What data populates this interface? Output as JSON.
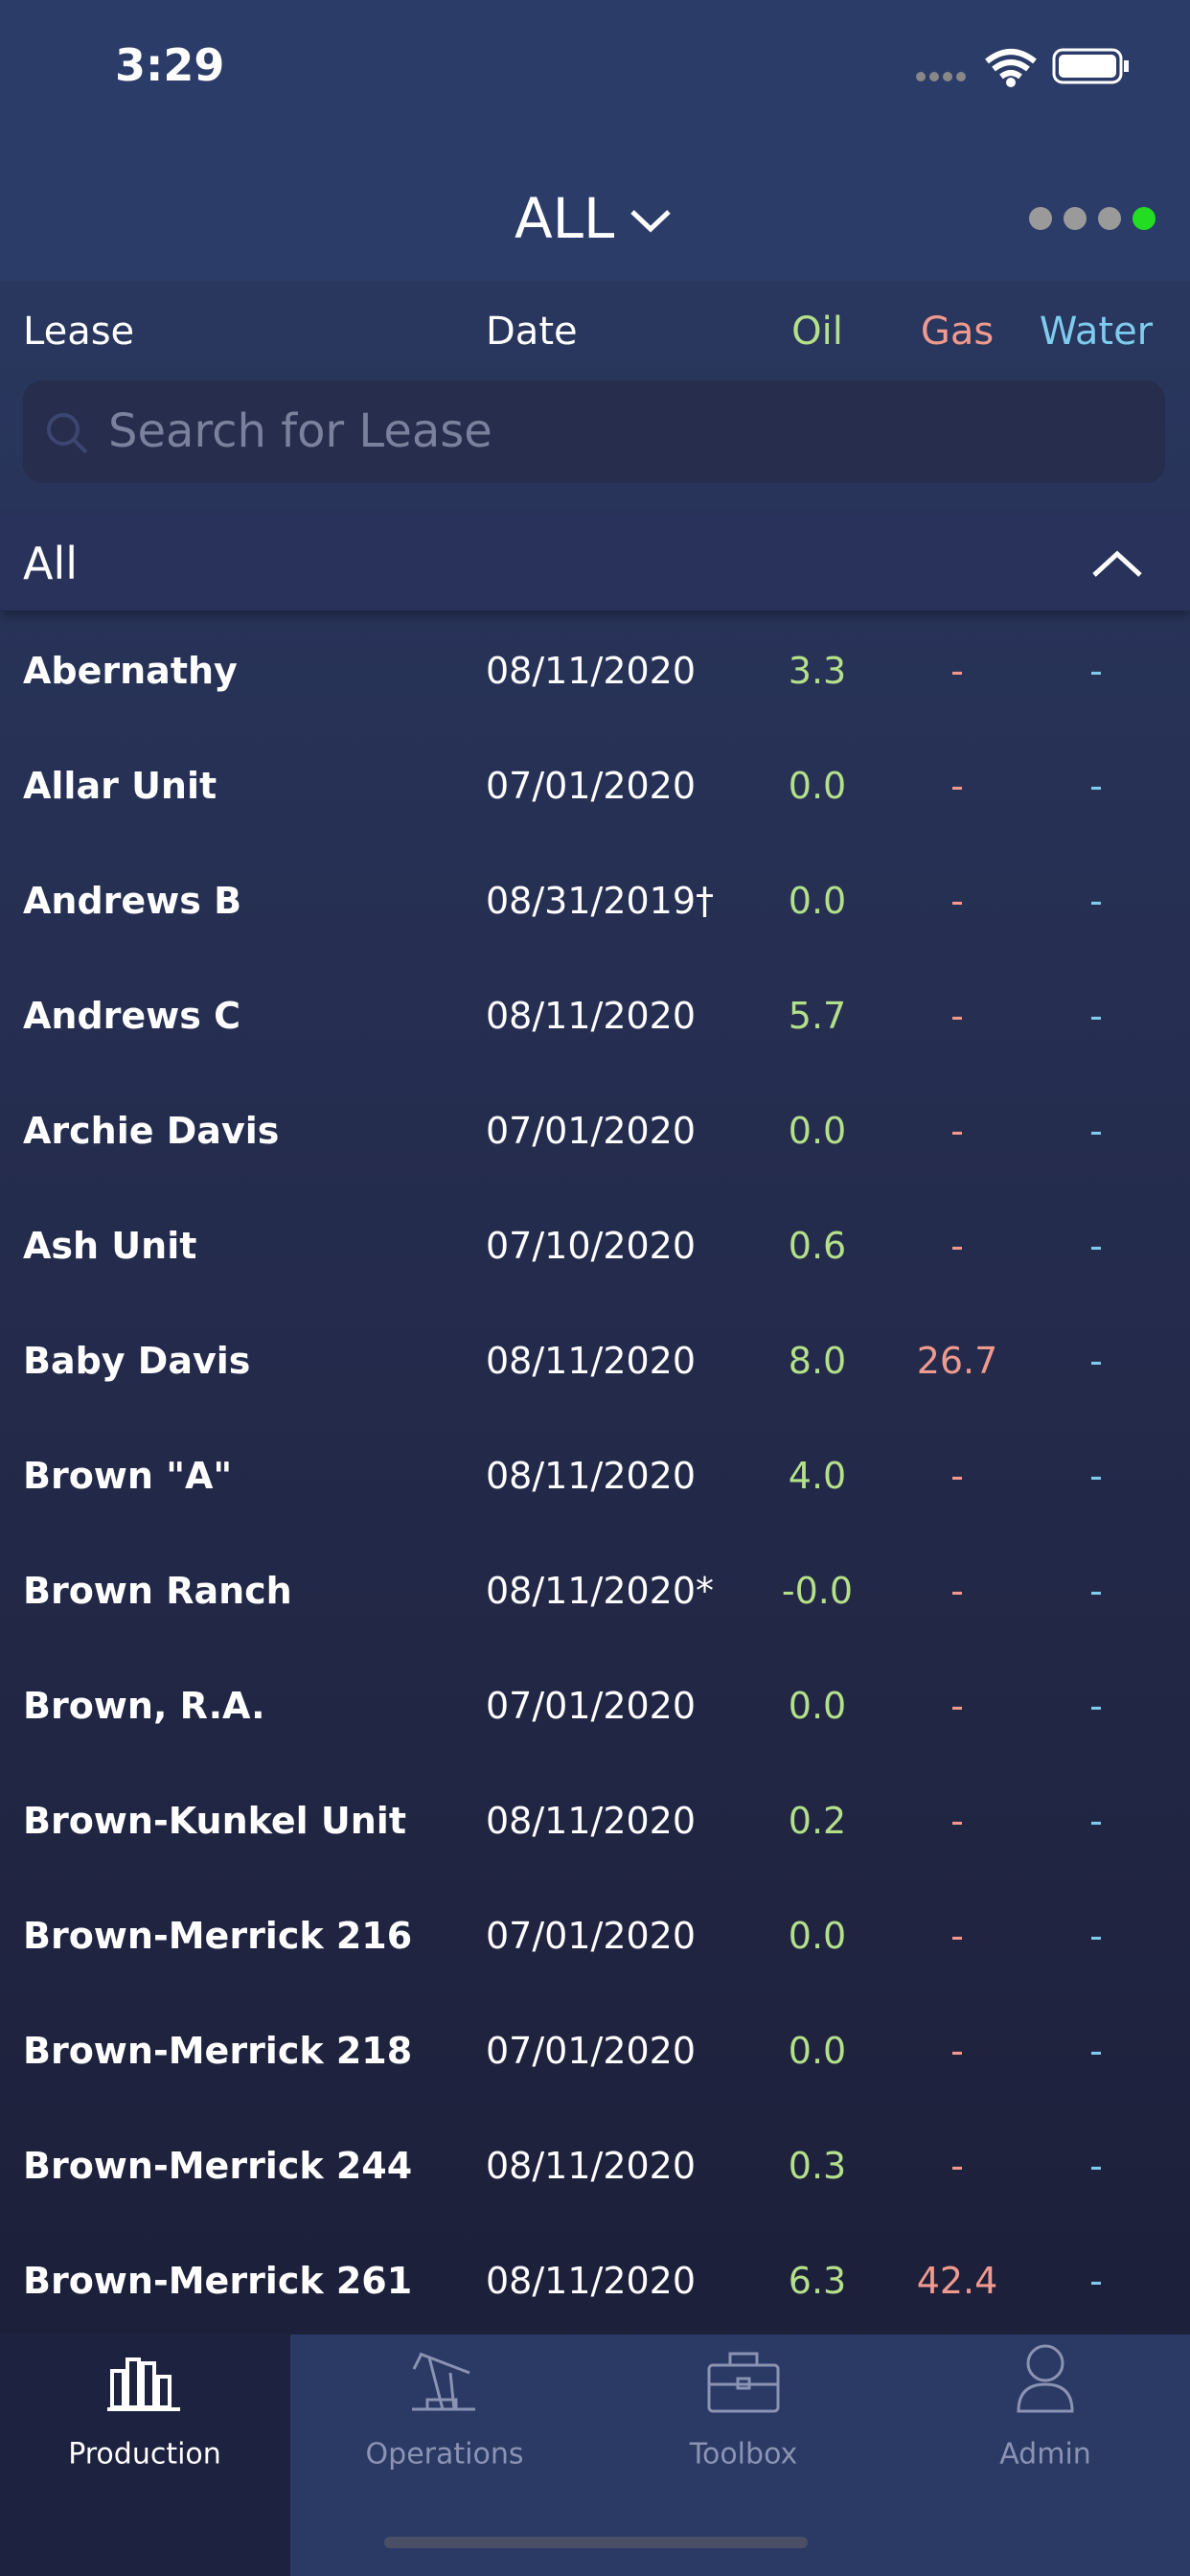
{
  "status_bar": {
    "time": "3:29"
  },
  "header": {
    "title": "ALL"
  },
  "columns": {
    "lease": "Lease",
    "date": "Date",
    "oil": "Oil",
    "gas": "Gas",
    "water": "Water"
  },
  "search": {
    "placeholder": "Search for Lease"
  },
  "section": {
    "title": "All"
  },
  "table": {
    "rows": [
      [
        "Abernathy",
        "08/11/2020",
        "3.3",
        "-",
        "-"
      ],
      [
        "Allar Unit",
        "07/01/2020",
        "0.0",
        "-",
        "-"
      ],
      [
        "Andrews B",
        "08/31/2019†",
        "0.0",
        "-",
        "-"
      ],
      [
        "Andrews C",
        "08/11/2020",
        "5.7",
        "-",
        "-"
      ],
      [
        "Archie Davis",
        "07/01/2020",
        "0.0",
        "-",
        "-"
      ],
      [
        "Ash Unit",
        "07/10/2020",
        "0.6",
        "-",
        "-"
      ],
      [
        "Baby Davis",
        "08/11/2020",
        "8.0",
        "26.7",
        "-"
      ],
      [
        "Brown \"A\"",
        "08/11/2020",
        "4.0",
        "-",
        "-"
      ],
      [
        "Brown Ranch",
        "08/11/2020*",
        "-0.0",
        "-",
        "-"
      ],
      [
        "Brown, R.A.",
        "07/01/2020",
        "0.0",
        "-",
        "-"
      ],
      [
        "Brown-Kunkel Unit",
        "08/11/2020",
        "0.2",
        "-",
        "-"
      ],
      [
        "Brown-Merrick 216",
        "07/01/2020",
        "0.0",
        "-",
        "-"
      ],
      [
        "Brown-Merrick 218",
        "07/01/2020",
        "0.0",
        "-",
        "-"
      ],
      [
        "Brown-Merrick 244",
        "08/11/2020",
        "0.3",
        "-",
        "-"
      ],
      [
        "Brown-Merrick 261",
        "08/11/2020",
        "6.3",
        "42.4",
        "-"
      ]
    ]
  },
  "tabs": [
    "Production",
    "Operations",
    "Toolbox",
    "Admin"
  ]
}
